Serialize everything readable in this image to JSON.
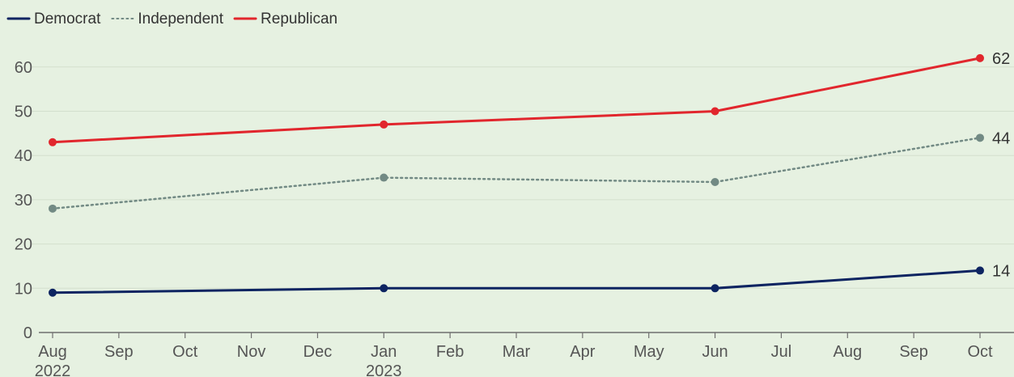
{
  "chart_data": {
    "type": "line",
    "title": "",
    "xlabel": "",
    "ylabel": "",
    "ylim": [
      0,
      65
    ],
    "yticks": [
      0,
      10,
      20,
      30,
      40,
      50,
      60
    ],
    "xlim": [
      "2022-08",
      "2023-10"
    ],
    "x_ticks": [
      {
        "date": "2022-08",
        "label": "Aug",
        "sublabel": "2022"
      },
      {
        "date": "2022-09",
        "label": "Sep",
        "sublabel": ""
      },
      {
        "date": "2022-10",
        "label": "Oct",
        "sublabel": ""
      },
      {
        "date": "2022-11",
        "label": "Nov",
        "sublabel": ""
      },
      {
        "date": "2022-12",
        "label": "Dec",
        "sublabel": ""
      },
      {
        "date": "2023-01",
        "label": "Jan",
        "sublabel": "2023"
      },
      {
        "date": "2023-02",
        "label": "Feb",
        "sublabel": ""
      },
      {
        "date": "2023-03",
        "label": "Mar",
        "sublabel": ""
      },
      {
        "date": "2023-04",
        "label": "Apr",
        "sublabel": ""
      },
      {
        "date": "2023-05",
        "label": "May",
        "sublabel": ""
      },
      {
        "date": "2023-06",
        "label": "Jun",
        "sublabel": ""
      },
      {
        "date": "2023-07",
        "label": "Jul",
        "sublabel": ""
      },
      {
        "date": "2023-08",
        "label": "Aug",
        "sublabel": ""
      },
      {
        "date": "2023-09",
        "label": "Sep",
        "sublabel": ""
      },
      {
        "date": "2023-10",
        "label": "Oct",
        "sublabel": ""
      }
    ],
    "grid": true,
    "legend_position": "top-left",
    "series": [
      {
        "name": "Democrat",
        "color": "#0d2461",
        "dashed": false,
        "points": [
          {
            "date": "2022-08",
            "value": 9
          },
          {
            "date": "2023-01",
            "value": 10
          },
          {
            "date": "2023-06",
            "value": 10
          },
          {
            "date": "2023-10",
            "value": 14
          }
        ],
        "end_label": "14"
      },
      {
        "name": "Independent",
        "color": "#728a84",
        "dashed": true,
        "points": [
          {
            "date": "2022-08",
            "value": 28
          },
          {
            "date": "2023-01",
            "value": 35
          },
          {
            "date": "2023-06",
            "value": 34
          },
          {
            "date": "2023-10",
            "value": 44
          }
        ],
        "end_label": "44"
      },
      {
        "name": "Republican",
        "color": "#e1262d",
        "dashed": false,
        "points": [
          {
            "date": "2022-08",
            "value": 43
          },
          {
            "date": "2023-01",
            "value": 47
          },
          {
            "date": "2023-06",
            "value": 50
          },
          {
            "date": "2023-10",
            "value": 62
          }
        ],
        "end_label": "62"
      }
    ]
  }
}
